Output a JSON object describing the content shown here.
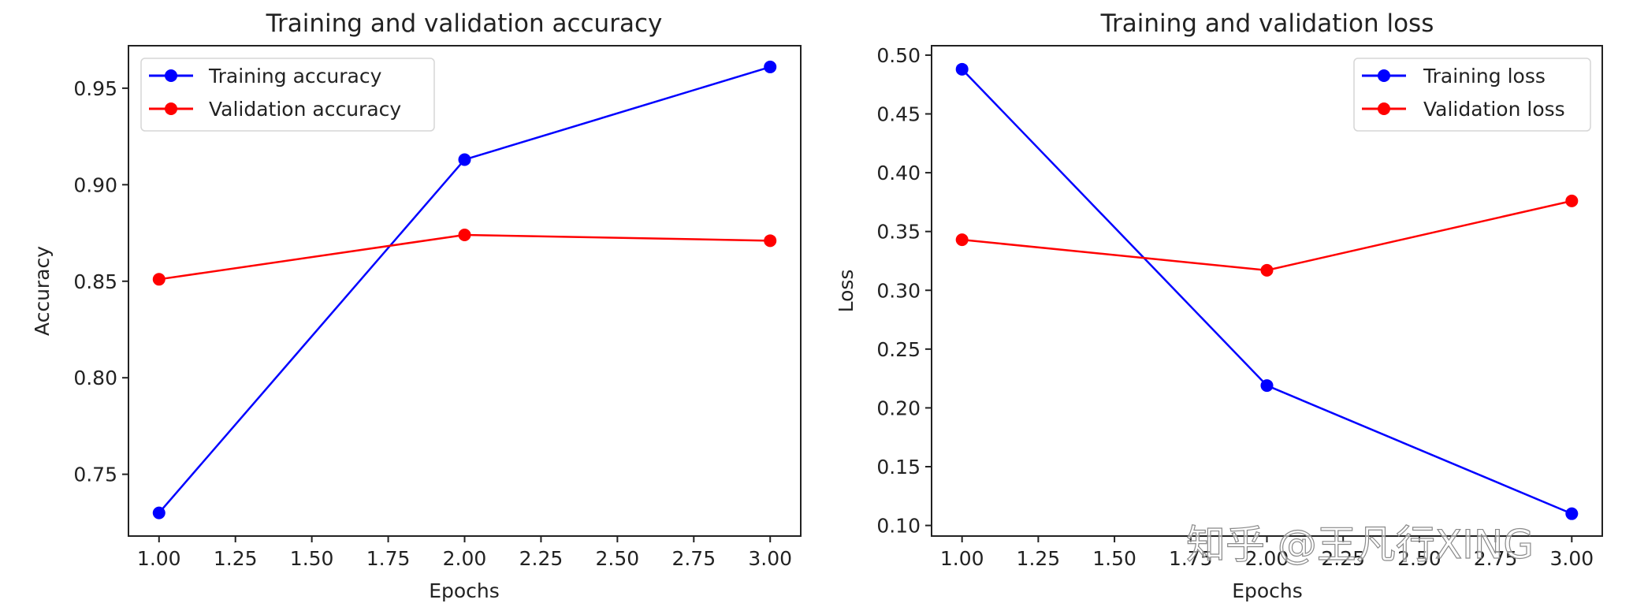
{
  "chart_data": [
    {
      "type": "line",
      "title": "Training and validation accuracy",
      "xlabel": "Epochs",
      "ylabel": "Accuracy",
      "x": [
        1,
        2,
        3
      ],
      "xticks": [
        "1.00",
        "1.25",
        "1.50",
        "1.75",
        "2.00",
        "2.25",
        "2.50",
        "2.75",
        "3.00"
      ],
      "yticks": [
        "0.75",
        "0.80",
        "0.85",
        "0.90",
        "0.95"
      ],
      "xlim": [
        0.9,
        3.1
      ],
      "ylim": [
        0.718,
        0.972
      ],
      "grid": false,
      "legend_position": "upper left",
      "series": [
        {
          "name": "Training accuracy",
          "color": "#0000ff",
          "marker": "o",
          "values": [
            0.73,
            0.913,
            0.961
          ]
        },
        {
          "name": "Validation accuracy",
          "color": "#ff0000",
          "marker": "o",
          "values": [
            0.851,
            0.874,
            0.871
          ]
        }
      ]
    },
    {
      "type": "line",
      "title": "Training and validation loss",
      "xlabel": "Epochs",
      "ylabel": "Loss",
      "x": [
        1,
        2,
        3
      ],
      "xticks": [
        "1.00",
        "1.25",
        "1.50",
        "1.75",
        "2.00",
        "2.25",
        "2.50",
        "2.75",
        "3.00"
      ],
      "yticks": [
        "0.10",
        "0.15",
        "0.20",
        "0.25",
        "0.30",
        "0.35",
        "0.40",
        "0.45",
        "0.50"
      ],
      "xlim": [
        0.9,
        3.1
      ],
      "ylim": [
        0.091,
        0.508
      ],
      "grid": false,
      "legend_position": "upper right",
      "series": [
        {
          "name": "Training loss",
          "color": "#0000ff",
          "marker": "o",
          "values": [
            0.488,
            0.219,
            0.11
          ]
        },
        {
          "name": "Validation loss",
          "color": "#ff0000",
          "marker": "o",
          "values": [
            0.343,
            0.317,
            0.376
          ]
        }
      ]
    }
  ],
  "watermark": "知乎 @王凡行XING"
}
